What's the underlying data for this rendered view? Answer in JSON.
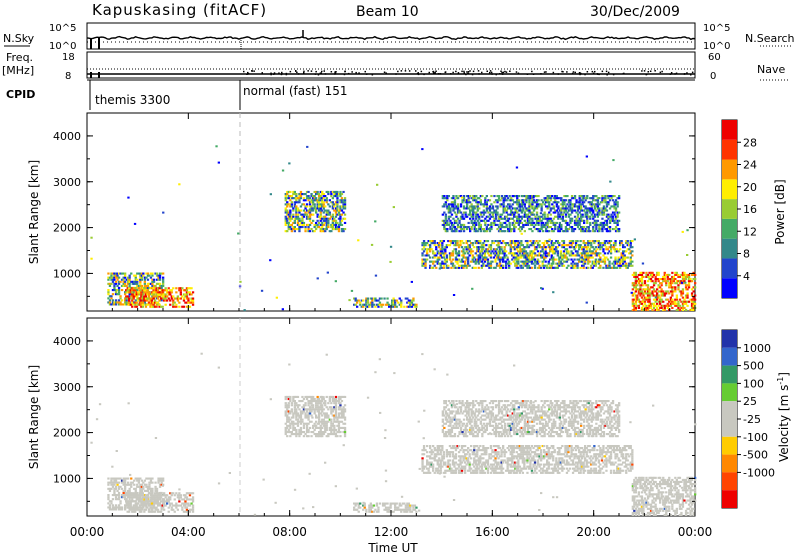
{
  "header": {
    "station": "Kapuskasing (fitACF)",
    "beam": "Beam 10",
    "date": "30/Dec/2009"
  },
  "small_panels": {
    "nsky_label": "N.Sky",
    "nsky_ticks": [
      "10^5",
      "10^0"
    ],
    "nsearch_label": "N.Search",
    "freq_label": "Freq.",
    "freq_unit": "[MHz]",
    "freq_ticks": [
      "18",
      "8"
    ],
    "nave_label": "Nave",
    "nave_ticks": [
      "60",
      "0"
    ],
    "cpid_label": "CPID",
    "cpid_segments": [
      {
        "name": "themis 3300",
        "start_hour": 0,
        "end_hour": 6
      },
      {
        "name": "normal (fast) 151",
        "start_hour": 6,
        "end_hour": 24
      }
    ]
  },
  "time_axis": {
    "label": "Time UT",
    "ticks": [
      "00:00",
      "04:00",
      "08:00",
      "12:00",
      "16:00",
      "20:00",
      "00:00"
    ]
  },
  "colors": {
    "power_scale": [
      "#0000ff",
      "#2244cc",
      "#33888a",
      "#44aa66",
      "#99cc33",
      "#ffee00",
      "#ff9900",
      "#ff3300",
      "#ee0000"
    ],
    "velocity_scale": [
      "#2233aa",
      "#3366cc",
      "#339966",
      "#66cc33",
      "#c8c8c0",
      "#c8c8c0",
      "#ffcc00",
      "#ff8800",
      "#ff4400",
      "#ee0000"
    ],
    "ground_scatter": "#c8c8c0"
  },
  "chart_data": [
    {
      "type": "heatmap",
      "panel": "power",
      "ylabel": "Slant Range [km]",
      "yticks": [
        "1000",
        "2000",
        "3000",
        "4000"
      ],
      "ylim": [
        180,
        4500
      ],
      "xlim_hours": [
        0,
        24
      ],
      "colorbar_label": "Power [dB]",
      "colorbar_ticks": [
        "4",
        "8",
        "12",
        "16",
        "20",
        "24",
        "28"
      ],
      "colorbar_range": [
        0,
        32
      ],
      "scatter_regions": [
        {
          "t0": 0.8,
          "t1": 3.0,
          "r0": 300,
          "r1": 1000,
          "level": "mixed"
        },
        {
          "t0": 1.5,
          "t1": 4.2,
          "r0": 250,
          "r1": 700,
          "level": "high"
        },
        {
          "t0": 7.8,
          "t1": 10.2,
          "r0": 1900,
          "r1": 2800,
          "level": "mixed"
        },
        {
          "t0": 13.2,
          "t1": 21.5,
          "r0": 1100,
          "r1": 1700,
          "level": "mixed"
        },
        {
          "t0": 14.0,
          "t1": 21.0,
          "r0": 1900,
          "r1": 2700,
          "level": "low"
        },
        {
          "t0": 10.5,
          "t1": 13.0,
          "r0": 250,
          "r1": 450,
          "level": "mixed"
        },
        {
          "t0": 21.5,
          "t1": 24.0,
          "r0": 180,
          "r1": 1000,
          "level": "high"
        }
      ]
    },
    {
      "type": "heatmap",
      "panel": "velocity",
      "ylabel": "Slant Range [km]",
      "yticks": [
        "1000",
        "2000",
        "3000",
        "4000"
      ],
      "ylim": [
        180,
        4500
      ],
      "xlim_hours": [
        0,
        24
      ],
      "colorbar_label": "Velocity [m s",
      "colorbar_label_sup": "-1",
      "colorbar_label_end": "]",
      "colorbar_ticks": [
        "1000",
        "500",
        "100",
        "25",
        "-25",
        "-100",
        "-500",
        "-1000"
      ],
      "scatter_regions": [
        {
          "t0": 0.8,
          "t1": 3.0,
          "r0": 300,
          "r1": 1000,
          "level": "gs"
        },
        {
          "t0": 1.5,
          "t1": 4.2,
          "r0": 250,
          "r1": 700,
          "level": "gs"
        },
        {
          "t0": 7.8,
          "t1": 10.2,
          "r0": 1900,
          "r1": 2800,
          "level": "gs"
        },
        {
          "t0": 13.2,
          "t1": 21.5,
          "r0": 1100,
          "r1": 1700,
          "level": "gs"
        },
        {
          "t0": 14.0,
          "t1": 21.0,
          "r0": 1900,
          "r1": 2700,
          "level": "gs"
        },
        {
          "t0": 10.5,
          "t1": 13.0,
          "r0": 250,
          "r1": 450,
          "level": "gs"
        },
        {
          "t0": 21.5,
          "t1": 24.0,
          "r0": 180,
          "r1": 1000,
          "level": "gs"
        }
      ]
    }
  ]
}
